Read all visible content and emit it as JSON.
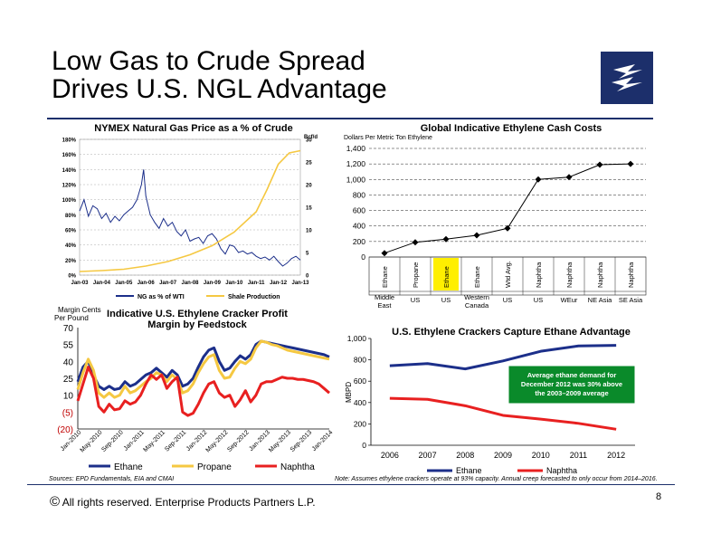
{
  "slide": {
    "title_line1": "Low Gas to Crude Spread",
    "title_line2": "Drives U.S. NGL Advantage",
    "copyright": "All rights reserved. Enterprise Products Partners L.P.",
    "copyright_symbol": "©",
    "page_number": "8",
    "sources": "Sources:  EPD Fundamentals, EIA and CMAI",
    "note": "Note:  Assumes ethylene crackers operate at 93% capacity. Annual creep forecasted to only occur from 2014–2016.",
    "brand_color": "#1c2f6b",
    "logo_icon": "lightning-bolt-icon"
  },
  "chart_data": [
    {
      "type": "line",
      "title": "NYMEX Natural Gas Price as a % of Crude",
      "y2label": "Bcf/d",
      "x_ticks": [
        "Jan-03",
        "Jan-04",
        "Jan-05",
        "Jan-06",
        "Jan-07",
        "Jan-08",
        "Jan-09",
        "Jan-10",
        "Jan-11",
        "Jan-12",
        "Jan-13"
      ],
      "y_ticks": [
        "0%",
        "20%",
        "40%",
        "60%",
        "80%",
        "100%",
        "120%",
        "140%",
        "160%",
        "180%"
      ],
      "y2_ticks": [
        "0",
        "5",
        "10",
        "15",
        "20",
        "25",
        "30"
      ],
      "ylim": [
        0,
        180
      ],
      "y2lim": [
        0,
        30
      ],
      "series": [
        {
          "name": "NG as % of WTI",
          "color": "#1c2f8a",
          "axis": "left",
          "x": [
            2003.0,
            2003.2,
            2003.4,
            2003.6,
            2003.8,
            2004.0,
            2004.2,
            2004.4,
            2004.6,
            2004.8,
            2005.0,
            2005.2,
            2005.4,
            2005.6,
            2005.8,
            2005.9,
            2006.0,
            2006.2,
            2006.4,
            2006.6,
            2006.8,
            2007.0,
            2007.2,
            2007.4,
            2007.6,
            2007.8,
            2008.0,
            2008.2,
            2008.4,
            2008.6,
            2008.8,
            2009.0,
            2009.2,
            2009.4,
            2009.6,
            2009.8,
            2010.0,
            2010.2,
            2010.4,
            2010.6,
            2010.8,
            2011.0,
            2011.2,
            2011.4,
            2011.6,
            2011.8,
            2012.0,
            2012.2,
            2012.4,
            2012.6,
            2012.8,
            2013.0
          ],
          "values": [
            85,
            100,
            78,
            92,
            88,
            75,
            82,
            70,
            78,
            72,
            80,
            85,
            90,
            100,
            120,
            140,
            105,
            80,
            70,
            62,
            75,
            65,
            70,
            58,
            52,
            60,
            45,
            48,
            50,
            42,
            52,
            55,
            48,
            35,
            28,
            40,
            38,
            30,
            32,
            28,
            30,
            25,
            22,
            24,
            20,
            25,
            18,
            12,
            16,
            22,
            25,
            20
          ]
        },
        {
          "name": "Shale Production",
          "color": "#f5c842",
          "axis": "right",
          "x": [
            2003,
            2004,
            2005,
            2006,
            2007,
            2008,
            2009,
            2010,
            2011,
            2011.5,
            2012,
            2012.5,
            2013
          ],
          "values": [
            0.8,
            1.0,
            1.3,
            2.0,
            3.0,
            4.5,
            6.5,
            9.5,
            14,
            19,
            24.5,
            27,
            27.5
          ]
        }
      ],
      "legend_placement": "bottom"
    },
    {
      "type": "line",
      "title": "Global Indicative Ethylene Cash Costs",
      "subtitle": "Dollars Per Metric Ton Ethylene",
      "categories": [
        "Ethane",
        "Propane",
        "Ethane",
        "Ethane",
        "Wtd Avg.",
        "Naphtha",
        "Naphtha",
        "Naphtha",
        "Naphtha"
      ],
      "regions": [
        "Middle East",
        "US",
        "US",
        "Western Canada",
        "US",
        "US",
        "WEur",
        "NE Asia",
        "SE Asia"
      ],
      "highlight_index": 2,
      "values": [
        50,
        190,
        230,
        280,
        370,
        1000,
        1030,
        1190,
        1200
      ],
      "y_ticks": [
        "0",
        "200",
        "400",
        "600",
        "800",
        "1,000",
        "1,200",
        "1,400"
      ],
      "ylim": [
        0,
        1400
      ],
      "grid": true
    },
    {
      "type": "line",
      "title": "Indicative U.S. Ethylene Cracker Profit Margin by Feedstock",
      "ylabel": "Margin Cents Per Pound",
      "y_ticks": [
        "70",
        "55",
        "40",
        "25",
        "10",
        "(5)",
        "(20)"
      ],
      "ylim": [
        -20,
        70
      ],
      "x_ticks": [
        "Jan-2010",
        "May-2010",
        "Sep-2010",
        "Jan-2011",
        "May-2011",
        "Sep-2011",
        "Jan-2012",
        "May-2012",
        "Sep-2012",
        "Jan-2013",
        "May-2013",
        "Sep-2013",
        "Jan-2014"
      ],
      "x": [
        0,
        0.25,
        0.5,
        0.75,
        1,
        1.25,
        1.5,
        1.75,
        2,
        2.25,
        2.5,
        2.75,
        3,
        3.25,
        3.5,
        3.75,
        4,
        4.25,
        4.5,
        4.75,
        5,
        5.25,
        5.5,
        5.75,
        6,
        6.25,
        6.5,
        6.75,
        7,
        7.25,
        7.5,
        7.75,
        8,
        8.25,
        8.5,
        8.75,
        9,
        9.25,
        9.5,
        9.75,
        10,
        10.25,
        10.5,
        10.75,
        11,
        11.25,
        11.5,
        11.75,
        12
      ],
      "series": [
        {
          "name": "Ethane",
          "color": "#1c2f8a",
          "values": [
            22,
            35,
            40,
            28,
            18,
            15,
            18,
            15,
            16,
            22,
            18,
            20,
            24,
            28,
            30,
            34,
            30,
            26,
            32,
            28,
            18,
            20,
            25,
            35,
            44,
            50,
            52,
            40,
            32,
            34,
            40,
            45,
            42,
            46,
            55,
            58,
            57,
            56,
            55,
            54,
            53,
            52,
            51,
            50,
            49,
            48,
            47,
            46,
            44
          ]
        },
        {
          "name": "Propane",
          "color": "#f5c842",
          "values": [
            15,
            30,
            42,
            32,
            12,
            8,
            12,
            8,
            10,
            18,
            12,
            14,
            18,
            22,
            25,
            30,
            28,
            22,
            28,
            24,
            12,
            14,
            20,
            30,
            38,
            44,
            46,
            32,
            25,
            26,
            34,
            40,
            38,
            42,
            52,
            58,
            57,
            55,
            54,
            52,
            50,
            49,
            48,
            47,
            46,
            45,
            44,
            43,
            42
          ]
        },
        {
          "name": "Naphtha",
          "color": "#e82020",
          "values": [
            5,
            20,
            35,
            25,
            0,
            -5,
            2,
            -3,
            -2,
            5,
            2,
            4,
            10,
            20,
            28,
            24,
            28,
            16,
            22,
            26,
            -5,
            -8,
            -6,
            2,
            12,
            20,
            22,
            12,
            8,
            10,
            0,
            6,
            14,
            4,
            10,
            20,
            22,
            22,
            24,
            26,
            25,
            25,
            24,
            24,
            23,
            22,
            20,
            16,
            12
          ]
        }
      ],
      "legend_placement": "bottom"
    },
    {
      "type": "line",
      "title": "U.S. Ethylene Crackers Capture Ethane Advantage",
      "ylabel": "MBPD",
      "categories": [
        "2006",
        "2007",
        "2008",
        "2009",
        "2010",
        "2011",
        "2012"
      ],
      "y_ticks": [
        "0",
        "200",
        "400",
        "600",
        "800",
        "1,000"
      ],
      "ylim": [
        0,
        1000
      ],
      "series": [
        {
          "name": "Ethane",
          "color": "#1c2f8a",
          "values": [
            745,
            765,
            715,
            790,
            880,
            930,
            935
          ]
        },
        {
          "name": "Naphtha",
          "color": "#e82020",
          "values": [
            440,
            430,
            370,
            280,
            245,
            205,
            150
          ]
        }
      ],
      "annotation": "Average ethane demand for December 2012 was 30% above the 2003–2009 average",
      "annotation_color": "#0a8a2a",
      "legend_placement": "bottom"
    }
  ]
}
